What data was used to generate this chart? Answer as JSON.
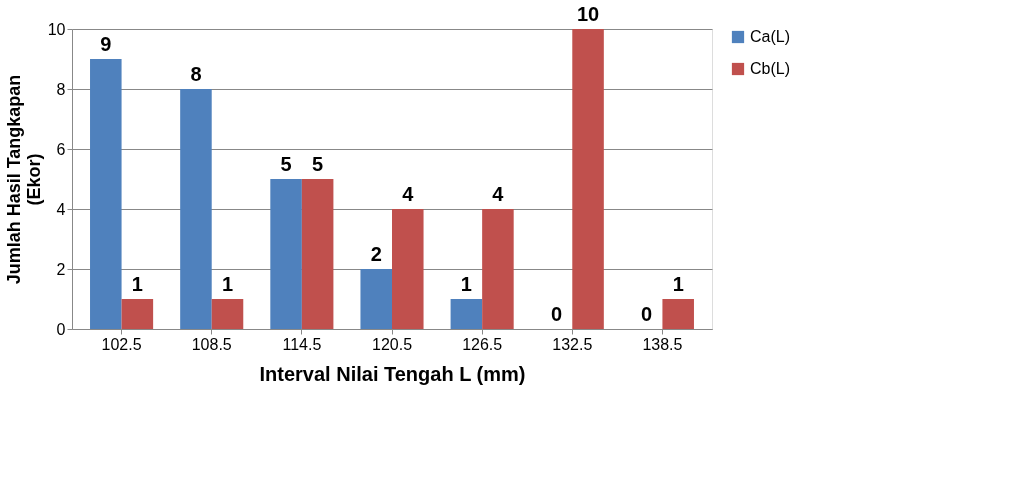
{
  "chart_data": {
    "type": "bar",
    "xlabel": "Interval Nilai Tengah L (mm)",
    "ylabel": "Jumlah Hasil Tangkapan (Ekor)",
    "categories": [
      "102.5",
      "108.5",
      "114.5",
      "120.5",
      "126.5",
      "132.5",
      "138.5"
    ],
    "series": [
      {
        "name": "Ca(L)",
        "color": "#4f81bd",
        "values": [
          9,
          8,
          5,
          2,
          1,
          0,
          0
        ]
      },
      {
        "name": "Cb(L)",
        "color": "#c0504d",
        "values": [
          1,
          1,
          5,
          4,
          4,
          10,
          1
        ]
      }
    ],
    "ylim": [
      0,
      10
    ],
    "yticks": [
      0,
      2,
      4,
      6,
      8,
      10
    ],
    "grid": "y",
    "legend": "right",
    "data_labels": true
  }
}
